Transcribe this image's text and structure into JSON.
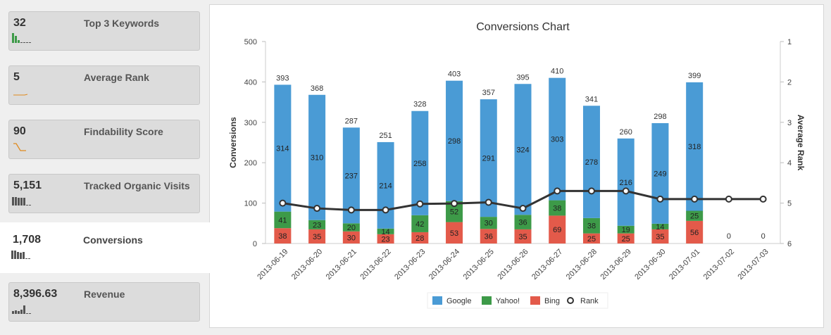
{
  "sidebar": {
    "metrics": [
      {
        "value": "32",
        "label": "Top 3 Keywords",
        "spark": "bars"
      },
      {
        "value": "5",
        "label": "Average Rank",
        "spark": "line-flat"
      },
      {
        "value": "90",
        "label": "Findability Score",
        "spark": "line-drop"
      },
      {
        "value": "5,151",
        "label": "Tracked Organic Visits",
        "spark": "bars"
      },
      {
        "value": "1,708",
        "label": "Conversions",
        "spark": "bars"
      },
      {
        "value": "8,396.63",
        "label": "Revenue",
        "spark": "bars"
      }
    ]
  },
  "colors": {
    "google": "#4a9bd5",
    "yahoo": "#3d9a48",
    "bing": "#e35a4a",
    "rank": "#333333",
    "spark_bar": "#555555",
    "spark_bar_green": "#3d9a48",
    "spark_line": "#e08a1e"
  },
  "chart_data": {
    "type": "bar",
    "stacked": true,
    "title": "Conversions Chart",
    "ylabel": "Conversions",
    "y2label": "Average Rank",
    "ylim": [
      0,
      500
    ],
    "yticks": [
      0,
      100,
      200,
      300,
      400,
      500
    ],
    "y2lim": [
      1,
      6
    ],
    "y2ticks": [
      1,
      2,
      3,
      4,
      5,
      6
    ],
    "y2_reversed": true,
    "categories": [
      "2013-06-19",
      "2013-06-20",
      "2013-06-21",
      "2013-06-22",
      "2013-06-23",
      "2013-06-24",
      "2013-06-25",
      "2013-06-26",
      "2013-06-27",
      "2013-06-28",
      "2013-06-29",
      "2013-06-30",
      "2013-07-01",
      "2013-07-02",
      "2013-07-03"
    ],
    "totals": [
      393,
      368,
      287,
      251,
      328,
      403,
      357,
      395,
      410,
      341,
      260,
      298,
      399,
      0,
      0
    ],
    "series": [
      {
        "name": "Google",
        "values": [
          314,
          310,
          237,
          214,
          258,
          298,
          291,
          324,
          303,
          278,
          216,
          249,
          318,
          0,
          0
        ]
      },
      {
        "name": "Yahoo!",
        "values": [
          41,
          23,
          20,
          14,
          42,
          52,
          30,
          36,
          38,
          38,
          19,
          14,
          25,
          0,
          0
        ]
      },
      {
        "name": "Bing",
        "values": [
          38,
          35,
          30,
          23,
          28,
          53,
          36,
          35,
          69,
          25,
          25,
          35,
          56,
          0,
          0
        ]
      },
      {
        "name": "Rank",
        "type": "line",
        "axis": "right",
        "values": [
          5.0,
          5.13,
          5.17,
          5.17,
          5.02,
          5.01,
          4.98,
          5.13,
          4.7,
          4.7,
          4.7,
          4.9,
          4.9,
          4.9,
          4.9
        ]
      }
    ],
    "legend": {
      "position": "bottom-center",
      "items": [
        "Google",
        "Yahoo!",
        "Bing",
        "Rank"
      ]
    },
    "grid": false
  }
}
